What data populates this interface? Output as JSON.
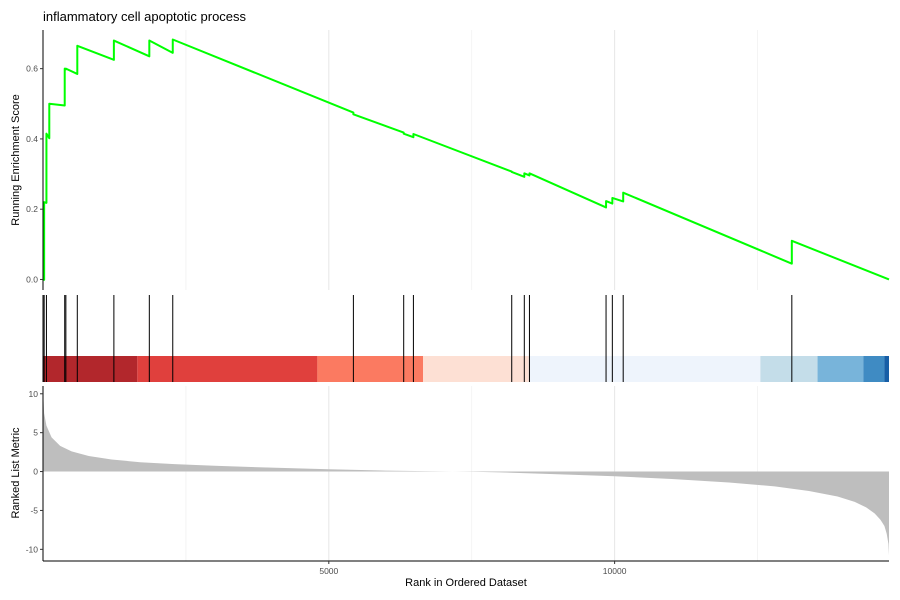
{
  "chart_data": {
    "type": "line",
    "title": "inflammatory cell apoptotic process",
    "x_axis": {
      "label": "Rank in Ordered Dataset",
      "range": [
        0,
        14800
      ],
      "ticks": [
        5000,
        10000
      ],
      "tick_labels": [
        "5000",
        "10000"
      ]
    },
    "panels": [
      {
        "name": "running-enrichment",
        "type": "line",
        "ylabel": "Running Enrichment Score",
        "ylim": [
          -0.03,
          0.71
        ],
        "y_ticks": [
          0.0,
          0.2,
          0.4,
          0.6
        ],
        "y_tick_labels": [
          "0.0",
          "0.2",
          "0.4",
          "0.6"
        ],
        "line_color": "#00ff00",
        "x": [
          0,
          20,
          20,
          60,
          60,
          110,
          110,
          380,
          380,
          400,
          400,
          600,
          600,
          1240,
          1240,
          1860,
          1860,
          2270,
          2270,
          5430,
          5430,
          6310,
          6310,
          6480,
          6480,
          8200,
          8200,
          8420,
          8420,
          8510,
          8510,
          9850,
          9850,
          9960,
          9960,
          10150,
          10150,
          13100,
          13100,
          14800
        ],
        "y": [
          0,
          -0.001,
          0.22,
          0.218,
          0.415,
          0.402,
          0.5,
          0.495,
          0.6,
          0.598,
          0.6,
          0.585,
          0.665,
          0.625,
          0.68,
          0.635,
          0.68,
          0.645,
          0.683,
          0.475,
          0.47,
          0.418,
          0.415,
          0.405,
          0.414,
          0.307,
          0.306,
          0.292,
          0.302,
          0.296,
          0.302,
          0.205,
          0.223,
          0.216,
          0.232,
          0.222,
          0.247,
          0.045,
          0.11,
          0.0
        ]
      },
      {
        "name": "gene-hits",
        "type": "rug",
        "positions": [
          20,
          60,
          380,
          400,
          600,
          1240,
          1860,
          2270,
          5430,
          6310,
          6480,
          8200,
          8420,
          8510,
          9850,
          9960,
          10150,
          13100
        ],
        "color_bands": [
          {
            "from": 0,
            "to": 1650,
            "color": "#b2272c"
          },
          {
            "from": 1650,
            "to": 4800,
            "color": "#e0403d"
          },
          {
            "from": 4800,
            "to": 6650,
            "color": "#fb7a61"
          },
          {
            "from": 6650,
            "to": 8500,
            "color": "#fde0d4"
          },
          {
            "from": 8500,
            "to": 12550,
            "color": "#eef4fc"
          },
          {
            "from": 12550,
            "to": 13550,
            "color": "#c4dde9"
          },
          {
            "from": 13550,
            "to": 14350,
            "color": "#78b4da"
          },
          {
            "from": 14350,
            "to": 14720,
            "color": "#3f8bc3"
          },
          {
            "from": 14720,
            "to": 14800,
            "color": "#175ea6"
          }
        ]
      },
      {
        "name": "ranked-list-metric",
        "type": "area",
        "ylabel": "Ranked List Metric",
        "ylim": [
          -11.5,
          11
        ],
        "y_ticks": [
          10,
          5,
          0,
          -5,
          -10
        ],
        "y_tick_labels": [
          "10",
          "5",
          "0",
          "-5",
          "-10"
        ],
        "fill_color": "#bebebe",
        "x": [
          0,
          20,
          60,
          150,
          300,
          500,
          800,
          1200,
          1700,
          2300,
          3000,
          4000,
          5000,
          6000,
          7000,
          7500,
          8000,
          9000,
          10000,
          11000,
          12000,
          12800,
          13400,
          13900,
          14200,
          14400,
          14550,
          14650,
          14720,
          14760,
          14790,
          14800
        ],
        "y": [
          10.5,
          7.5,
          5.9,
          4.4,
          3.3,
          2.6,
          2.0,
          1.55,
          1.2,
          0.95,
          0.75,
          0.5,
          0.3,
          0.12,
          0.02,
          -0.02,
          -0.1,
          -0.35,
          -0.6,
          -0.95,
          -1.4,
          -1.9,
          -2.5,
          -3.2,
          -3.9,
          -4.6,
          -5.4,
          -6.2,
          -7.0,
          -8.0,
          -9.3,
          -10.8
        ]
      }
    ],
    "grid": "vertical-only"
  }
}
